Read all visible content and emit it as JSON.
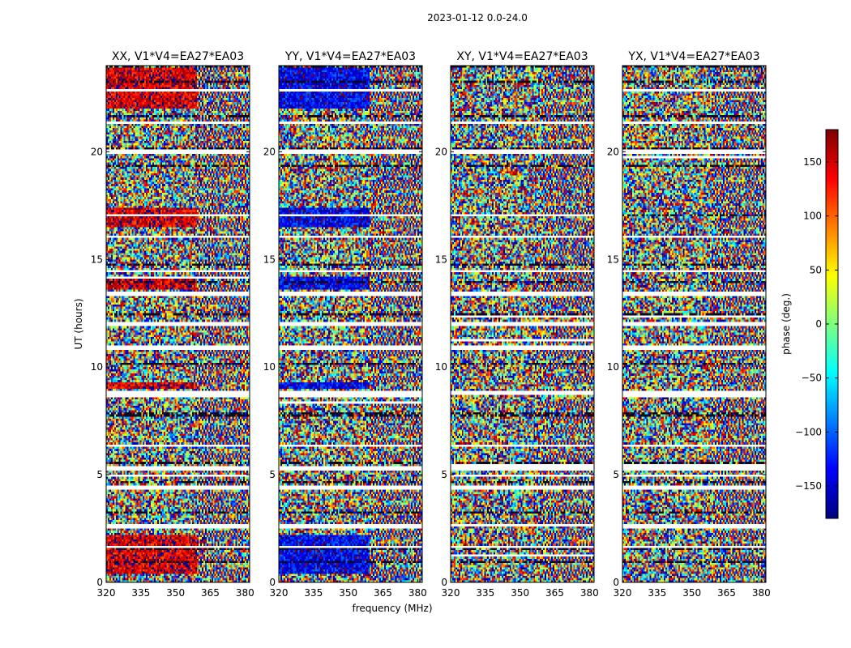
{
  "figure": {
    "title": "2023-01-12 0.0-24.0"
  },
  "chart_data": {
    "type": "heatmap",
    "description": "phase waterfall",
    "xlabel": "frequency (MHz)",
    "ylabel": "UT (hours)",
    "xlim": [
      320,
      382
    ],
    "ylim": [
      0,
      24
    ],
    "xticks": [
      320,
      335,
      350,
      365,
      380
    ],
    "yticks": [
      0,
      5,
      10,
      15,
      20
    ],
    "panels": [
      {
        "title": "XX, V1*V4=EA27*EA03",
        "bias": 150,
        "strong": true
      },
      {
        "title": "YY, V1*V4=EA27*EA03",
        "bias": -140,
        "strong": true
      },
      {
        "title": "XY, V1*V4=EA27*EA03",
        "bias": 0,
        "strong": false
      },
      {
        "title": "YX, V1*V4=EA27*EA03",
        "bias": 0,
        "strong": false
      }
    ],
    "blank_rows_hours": [
      [
        21.3,
        21.4
      ],
      [
        13.4,
        13.5
      ],
      [
        20.0,
        20.1
      ],
      [
        16.1,
        16.2
      ],
      [
        14.5,
        14.6
      ],
      [
        12.0,
        12.1
      ],
      [
        10.9,
        11.0
      ],
      [
        8.8,
        8.9
      ],
      [
        6.4,
        6.5
      ],
      [
        5.3,
        5.4
      ],
      [
        4.4,
        4.5
      ],
      [
        2.7,
        2.8
      ],
      [
        1.6,
        1.7
      ],
      [
        0.3,
        0.35
      ]
    ],
    "colorbar": {
      "label": "phase (deg.)",
      "range": [
        -180,
        180
      ],
      "ticks": [
        150,
        100,
        50,
        0,
        -50,
        -100,
        -150
      ],
      "tick_labels": [
        "150",
        "100",
        "50",
        "0",
        "−50",
        "−100",
        "−150"
      ]
    }
  }
}
